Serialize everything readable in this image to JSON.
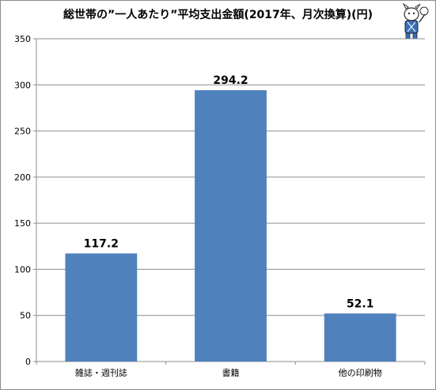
{
  "chart_data": {
    "type": "bar",
    "title": "総世帯の”一人あたり”平均支出金額(2017年、月次換算)(円)",
    "categories": [
      "雑誌・週刊誌",
      "書籍",
      "他の印刷物"
    ],
    "values": [
      117.2,
      294.2,
      52.1
    ],
    "value_labels": [
      "117.2",
      "294.2",
      "52.1"
    ],
    "ylim": [
      0,
      350
    ],
    "yticks": [
      0,
      50,
      100,
      150,
      200,
      250,
      300,
      350
    ],
    "grid": true,
    "bar_color": "#4f81bd",
    "grid_color": "#8c8c8c",
    "xlabel": "",
    "ylabel": ""
  }
}
